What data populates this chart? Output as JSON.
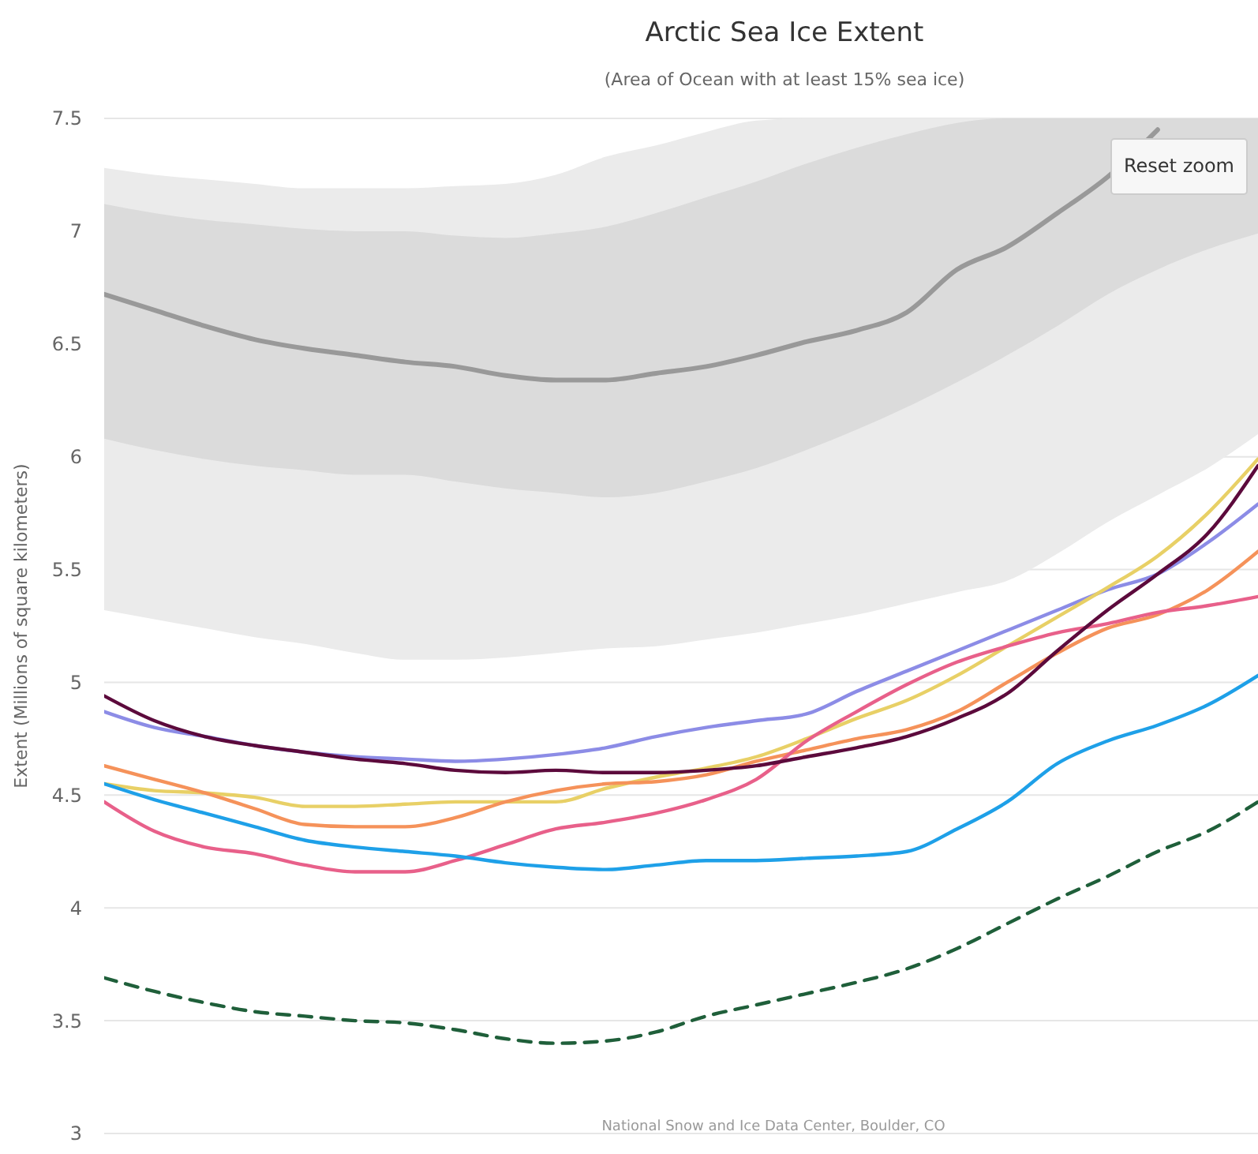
{
  "chart_data": {
    "type": "line",
    "title": "Arctic Sea Ice Extent",
    "subtitle": "(Area of Ocean with at least 15% sea ice)",
    "ylabel": "Extent (Millions of square kilometers)",
    "annotations": [
      "National Snow and Ice Data Center, Boulder, CO",
      "Reset zoom"
    ],
    "categories": [
      null,
      null,
      null,
      null,
      null,
      null,
      null,
      null,
      null,
      null,
      null,
      null,
      null,
      null,
      null,
      null,
      null,
      null,
      null,
      null,
      null,
      null,
      null,
      null
    ],
    "ylim": [
      3,
      7.5
    ],
    "yticks": [
      3,
      3.5,
      4,
      4.5,
      5,
      5.5,
      6,
      6.5,
      7,
      7.5
    ],
    "grid": "y",
    "series": [
      {
        "color": "#ebebeb",
        "values": [
          null,
          null,
          null,
          null,
          null,
          null,
          null,
          null,
          null,
          null,
          null,
          null,
          null,
          null,
          null,
          null,
          null,
          null,
          null,
          null,
          null,
          null,
          null,
          null
        ],
        "lower": [
          5.32,
          5.28,
          5.24,
          5.2,
          5.17,
          5.13,
          5.1,
          5.1,
          5.11,
          5.13,
          5.15,
          5.16,
          5.19,
          5.22,
          5.26,
          5.3,
          5.35,
          5.4,
          5.45,
          5.57,
          5.71,
          5.83,
          5.95,
          6.1
        ],
        "upper": [
          7.28,
          7.25,
          7.23,
          7.21,
          7.19,
          7.19,
          7.19,
          7.2,
          7.21,
          7.25,
          7.33,
          7.38,
          7.44,
          7.49,
          7.5,
          7.5,
          7.5,
          7.5,
          7.5,
          7.5,
          7.5,
          7.5,
          7.5,
          7.5
        ]
      },
      {
        "color": "#999999",
        "values": [
          6.72,
          6.65,
          6.58,
          6.52,
          6.48,
          6.45,
          6.42,
          6.4,
          6.36,
          6.34,
          6.34,
          6.37,
          6.4,
          6.45,
          6.51,
          6.56,
          6.64,
          6.83,
          6.93,
          7.08,
          7.24,
          7.45,
          null,
          null
        ],
        "lower": [
          6.08,
          6.03,
          5.99,
          5.96,
          5.94,
          5.92,
          5.92,
          5.89,
          5.86,
          5.84,
          5.82,
          5.84,
          5.89,
          5.95,
          6.03,
          6.12,
          6.22,
          6.33,
          6.45,
          6.58,
          6.72,
          6.83,
          6.92,
          6.99
        ],
        "upper": [
          7.12,
          7.08,
          7.05,
          7.03,
          7.01,
          7,
          7,
          6.98,
          6.97,
          6.99,
          7.02,
          7.08,
          7.15,
          7.22,
          7.3,
          7.37,
          7.43,
          7.48,
          7.5,
          7.5,
          7.5,
          7.5,
          7.5,
          7.5
        ]
      },
      {
        "color": "#8c8ce6",
        "values": [
          4.87,
          4.8,
          4.76,
          4.72,
          4.69,
          4.67,
          4.66,
          4.65,
          4.66,
          4.68,
          4.71,
          4.76,
          4.8,
          4.83,
          4.86,
          4.96,
          5.05,
          5.14,
          5.23,
          5.32,
          5.41,
          5.48,
          5.62,
          5.79
        ]
      },
      {
        "color": "#e8d066",
        "values": [
          4.55,
          4.52,
          4.51,
          4.49,
          4.45,
          4.45,
          4.46,
          4.47,
          4.47,
          4.47,
          4.53,
          4.58,
          4.62,
          4.67,
          4.75,
          4.84,
          4.92,
          5.03,
          5.16,
          5.29,
          5.42,
          5.56,
          5.75,
          5.99
        ]
      },
      {
        "color": "#f5925a",
        "values": [
          4.63,
          4.57,
          4.51,
          4.44,
          4.37,
          4.36,
          4.36,
          4.4,
          4.47,
          4.52,
          4.55,
          4.56,
          4.59,
          4.65,
          4.7,
          4.75,
          4.79,
          4.87,
          5,
          5.13,
          5.24,
          5.3,
          5.41,
          5.58
        ]
      },
      {
        "color": "#e8608a",
        "values": [
          4.47,
          4.34,
          4.27,
          4.24,
          4.19,
          4.16,
          4.16,
          4.21,
          4.28,
          4.35,
          4.38,
          4.42,
          4.48,
          4.57,
          4.74,
          4.87,
          4.99,
          5.09,
          5.16,
          5.22,
          5.26,
          5.31,
          5.34,
          5.38
        ]
      },
      {
        "color": "#1ea0e8",
        "values": [
          4.55,
          4.48,
          4.42,
          4.36,
          4.3,
          4.27,
          4.25,
          4.23,
          4.2,
          4.18,
          4.17,
          4.19,
          4.21,
          4.21,
          4.22,
          4.23,
          4.25,
          4.35,
          4.47,
          4.64,
          4.74,
          4.81,
          4.9,
          5.03
        ]
      },
      {
        "color": "#5c0a3c",
        "values": [
          4.94,
          4.83,
          4.76,
          4.72,
          4.69,
          4.66,
          4.64,
          4.61,
          4.6,
          4.61,
          4.6,
          4.6,
          4.61,
          4.63,
          4.67,
          4.71,
          4.76,
          4.84,
          4.95,
          5.14,
          5.32,
          5.48,
          5.66,
          5.96
        ]
      },
      {
        "color": "#1f5f3a",
        "line_style": "dashed",
        "values": [
          3.69,
          3.63,
          3.58,
          3.54,
          3.52,
          3.5,
          3.49,
          3.46,
          3.42,
          3.4,
          3.41,
          3.45,
          3.52,
          3.57,
          3.62,
          3.67,
          3.73,
          3.82,
          3.93,
          4.04,
          4.14,
          4.25,
          4.34,
          4.47
        ]
      }
    ]
  }
}
